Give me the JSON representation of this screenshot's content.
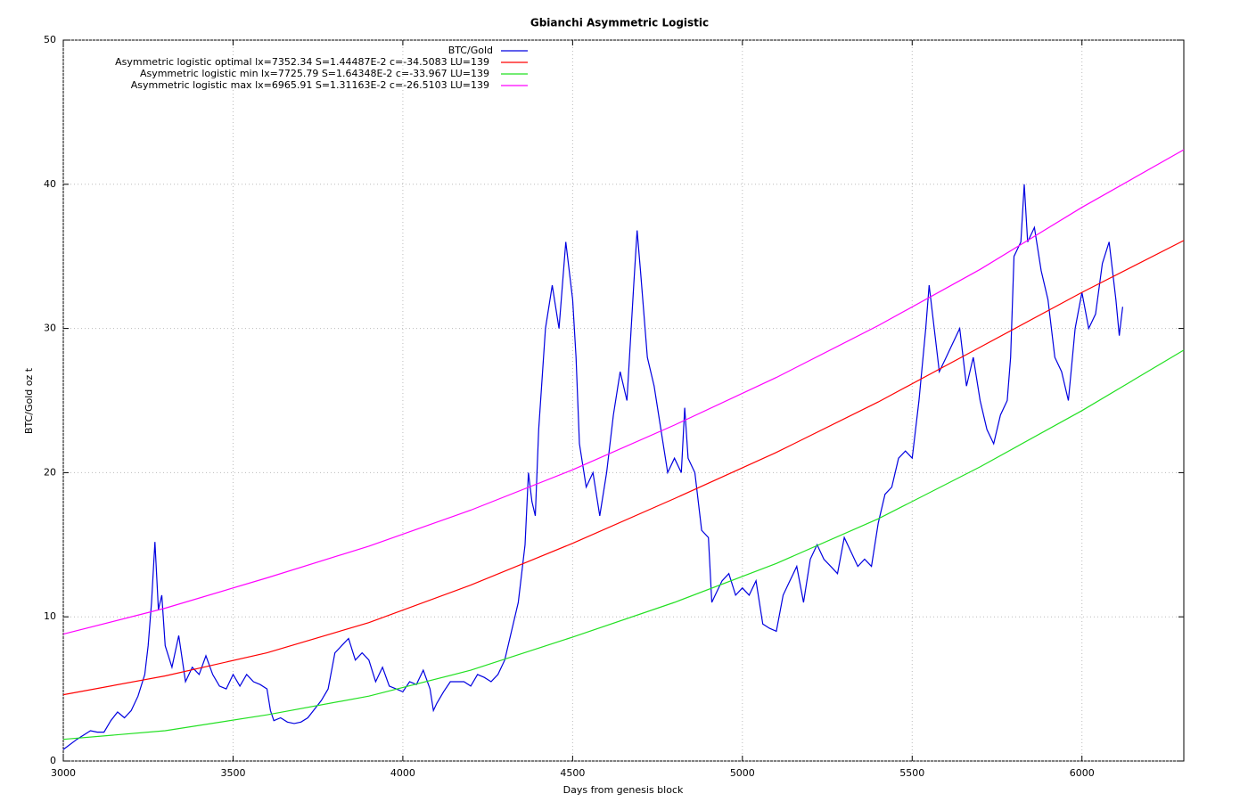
{
  "chart_data": {
    "type": "line",
    "title": "Gbianchi Asymmetric Logistic",
    "x_label": "Days from genesis block",
    "y_label": "BTC/Gold oz t",
    "xlim": [
      3000,
      6300
    ],
    "ylim": [
      0,
      50
    ],
    "xticks": [
      3000,
      3500,
      4000,
      4500,
      5000,
      5500,
      6000
    ],
    "yticks": [
      0,
      10,
      20,
      30,
      40,
      50
    ],
    "grid": true,
    "legend": "top",
    "series": [
      {
        "name": "BTC/Gold",
        "color": "#0000e0",
        "x": [
          3000,
          3040,
          3080,
          3100,
          3120,
          3140,
          3160,
          3180,
          3200,
          3220,
          3240,
          3250,
          3260,
          3270,
          3280,
          3290,
          3300,
          3320,
          3340,
          3360,
          3380,
          3400,
          3420,
          3440,
          3460,
          3480,
          3500,
          3520,
          3540,
          3560,
          3580,
          3600,
          3610,
          3620,
          3640,
          3660,
          3680,
          3700,
          3720,
          3740,
          3760,
          3780,
          3800,
          3820,
          3840,
          3860,
          3880,
          3900,
          3920,
          3940,
          3960,
          3980,
          4000,
          4020,
          4040,
          4060,
          4080,
          4090,
          4100,
          4120,
          4140,
          4160,
          4180,
          4200,
          4220,
          4240,
          4260,
          4280,
          4300,
          4320,
          4340,
          4360,
          4370,
          4380,
          4390,
          4400,
          4420,
          4440,
          4460,
          4480,
          4500,
          4510,
          4520,
          4540,
          4560,
          4580,
          4600,
          4620,
          4640,
          4660,
          4680,
          4690,
          4700,
          4720,
          4740,
          4760,
          4780,
          4800,
          4820,
          4830,
          4840,
          4860,
          4880,
          4900,
          4910,
          4920,
          4940,
          4960,
          4980,
          5000,
          5020,
          5040,
          5060,
          5080,
          5100,
          5120,
          5140,
          5160,
          5180,
          5200,
          5220,
          5240,
          5260,
          5280,
          5300,
          5320,
          5340,
          5360,
          5380,
          5400,
          5420,
          5440,
          5460,
          5480,
          5500,
          5520,
          5540,
          5550,
          5560,
          5580,
          5600,
          5620,
          5640,
          5660,
          5680,
          5700,
          5720,
          5740,
          5760,
          5780,
          5790,
          5800,
          5820,
          5830,
          5840,
          5860,
          5880,
          5900,
          5920,
          5940,
          5960,
          5980,
          6000,
          6020,
          6040,
          6060,
          6080,
          6100,
          6110,
          6120
        ],
        "values": [
          0.8,
          1.5,
          2.1,
          2.0,
          2.0,
          2.8,
          3.4,
          3.0,
          3.5,
          4.5,
          6.0,
          8.0,
          11,
          15.2,
          10.5,
          11.5,
          8.0,
          6.5,
          8.7,
          5.5,
          6.5,
          6.0,
          7.3,
          6.0,
          5.2,
          5.0,
          6.0,
          5.2,
          6.0,
          5.5,
          5.3,
          5.0,
          3.5,
          2.8,
          3.0,
          2.7,
          2.6,
          2.7,
          3.0,
          3.6,
          4.2,
          5.0,
          7.5,
          8.0,
          8.5,
          7.0,
          7.5,
          7.0,
          5.5,
          6.5,
          5.2,
          5.0,
          4.8,
          5.5,
          5.3,
          6.3,
          5.0,
          3.5,
          4.0,
          4.8,
          5.5,
          5.5,
          5.5,
          5.2,
          6.0,
          5.8,
          5.5,
          6.0,
          7.0,
          9.0,
          11.0,
          15.0,
          20.0,
          18.0,
          17.0,
          23.0,
          30.0,
          33.0,
          30.0,
          36.0,
          32.0,
          28.0,
          22.0,
          19.0,
          20.0,
          17.0,
          20.0,
          24.0,
          27.0,
          25.0,
          33.0,
          36.8,
          34.0,
          28.0,
          26.0,
          23.0,
          20.0,
          21.0,
          20.0,
          24.5,
          21.0,
          20.0,
          16.0,
          15.5,
          11.0,
          11.5,
          12.5,
          13.0,
          11.5,
          12.0,
          11.5,
          12.5,
          9.5,
          9.2,
          9.0,
          11.5,
          12.5,
          13.5,
          11.0,
          14.0,
          15.0,
          14.0,
          13.5,
          13.0,
          15.5,
          14.5,
          13.5,
          14.0,
          13.5,
          16.5,
          18.5,
          19.0,
          21.0,
          21.5,
          21.0,
          25.0,
          30.0,
          33.0,
          31.0,
          27.0,
          28.0,
          29.0,
          30.0,
          26.0,
          28.0,
          25.0,
          23.0,
          22.0,
          24.0,
          25.0,
          28.0,
          35.0,
          36.0,
          40.0,
          36.0,
          37.0,
          34.0,
          32.0,
          28.0,
          27.0,
          25.0,
          30.0,
          32.5,
          30.0,
          31.0,
          34.5,
          36.0,
          32.0,
          29.5,
          31.5
        ]
      },
      {
        "name": "Asymmetric logistic optimal lx=7352.34 S=1.44487E-2 c=-34.5083 LU=139",
        "color": "#ff0000",
        "x": [
          3000,
          3300,
          3600,
          3900,
          4200,
          4500,
          4800,
          5100,
          5400,
          5700,
          6000,
          6300
        ],
        "values": [
          4.6,
          5.9,
          7.5,
          9.6,
          12.2,
          15.1,
          18.2,
          21.4,
          24.9,
          28.7,
          32.5,
          36.1
        ]
      },
      {
        "name": "Asymmetric logistic min lx=7725.79 S=1.64348E-2 c=-33.967 LU=139",
        "color": "#22e022",
        "x": [
          3000,
          3300,
          3600,
          3900,
          4200,
          4500,
          4800,
          5100,
          5400,
          5700,
          6000,
          6300
        ],
        "values": [
          1.5,
          2.1,
          3.2,
          4.5,
          6.3,
          8.6,
          11.0,
          13.7,
          16.8,
          20.4,
          24.3,
          28.5
        ]
      },
      {
        "name": "Asymmetric logistic max lx=6965.91 S=1.31163E-2 c=-26.5103 LU=139",
        "color": "#ff00ff",
        "x": [
          3000,
          3300,
          3600,
          3900,
          4200,
          4500,
          4800,
          5100,
          5400,
          5700,
          6000,
          6300
        ],
        "values": [
          8.8,
          10.6,
          12.7,
          14.9,
          17.4,
          20.2,
          23.3,
          26.6,
          30.2,
          34.1,
          38.4,
          42.4
        ]
      }
    ]
  }
}
